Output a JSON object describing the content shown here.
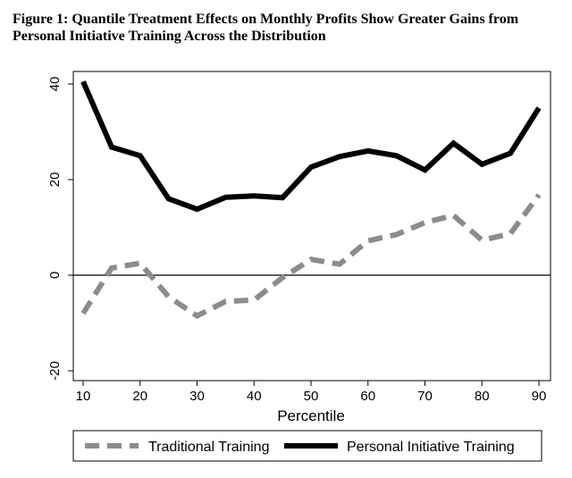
{
  "title": {
    "line1": "Figure 1: Quantile Treatment Effects on Monthly Profits Show Greater Gains from",
    "line2": "Personal Initiative Training Across the Distribution"
  },
  "chart_data": {
    "type": "line",
    "title": "Figure 1: Quantile Treatment Effects on Monthly Profits Show Greater Gains from Personal Initiative Training Across the Distribution",
    "xlabel": "Percentile",
    "ylabel": "",
    "xlim": [
      10,
      90
    ],
    "ylim": [
      -20,
      40
    ],
    "xticks": [
      10,
      20,
      30,
      40,
      50,
      60,
      70,
      80,
      90
    ],
    "yticks": [
      -20,
      0,
      20,
      40
    ],
    "zero_line": true,
    "legend_position": "bottom",
    "x": [
      10,
      15,
      20,
      25,
      30,
      35,
      40,
      45,
      50,
      55,
      60,
      65,
      70,
      75,
      80,
      85,
      90
    ],
    "series": [
      {
        "name": "Traditional Training",
        "color": "#8c8c8c",
        "style": "dashed",
        "values": [
          -8,
          1.5,
          2.5,
          -4.5,
          -8.5,
          -5.5,
          -5.2,
          -0.5,
          3.3,
          2.3,
          7.2,
          8.5,
          11,
          12.5,
          7.3,
          8.7,
          16.8
        ]
      },
      {
        "name": "Personal Initiative Training",
        "color": "#000000",
        "style": "solid",
        "values": [
          40.5,
          26.8,
          25,
          16,
          13.8,
          16.3,
          16.6,
          16.2,
          22.6,
          24.8,
          26,
          25,
          22,
          27.6,
          23.2,
          25.5,
          35
        ]
      }
    ]
  }
}
